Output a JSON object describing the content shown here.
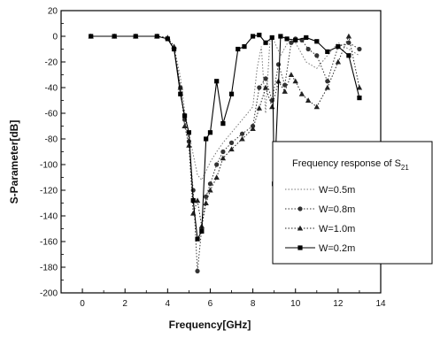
{
  "chart_data": {
    "type": "line",
    "xlabel": "Frequency[GHz]",
    "ylabel": "S-Parameter[dB]",
    "xlim": [
      -1,
      14
    ],
    "ylim": [
      -200,
      20
    ],
    "xticks": [
      0,
      2,
      4,
      6,
      8,
      10,
      12,
      14
    ],
    "yticks": [
      20,
      0,
      -20,
      -40,
      -60,
      -80,
      -100,
      -120,
      -140,
      -160,
      -180,
      -200
    ],
    "grid": false,
    "legend": {
      "title_main": "Frequency response of S",
      "title_sub": "21",
      "placement": "right",
      "entries": [
        "W=0.5m",
        "W=0.8m",
        "W=1.0m",
        "W=0.2m"
      ]
    },
    "series": [
      {
        "name": "W=0.5m",
        "style": "dotted",
        "marker": "none",
        "color": "#777777",
        "x": [
          0.4,
          1.5,
          2.5,
          3.5,
          4.0,
          4.3,
          4.6,
          4.8,
          5.0,
          5.2,
          5.4,
          5.6,
          5.8,
          6.0,
          6.3,
          6.6,
          7.0,
          7.5,
          8.0,
          8.2,
          8.4,
          8.6,
          8.8,
          9.0,
          9.3,
          9.6,
          10.0,
          10.5,
          11.0,
          11.5,
          12.0,
          12.5,
          13.0
        ],
        "y": [
          0,
          0,
          0,
          0,
          -1,
          -8,
          -32,
          -58,
          -76,
          -92,
          -108,
          -112,
          -105,
          -98,
          -90,
          -83,
          -75,
          -65,
          -55,
          -25,
          -8,
          -60,
          -3,
          -4,
          -15,
          -6,
          -5,
          -20,
          -25,
          -15,
          -5,
          -10,
          -15
        ]
      },
      {
        "name": "W=0.8m",
        "style": "dotted",
        "marker": "circle",
        "color": "#333333",
        "x": [
          0.4,
          1.5,
          2.5,
          3.5,
          4.0,
          4.3,
          4.6,
          4.8,
          5.0,
          5.2,
          5.4,
          5.6,
          5.8,
          6.0,
          6.3,
          6.6,
          7.0,
          7.5,
          8.0,
          8.3,
          8.6,
          8.9,
          9.2,
          9.5,
          9.8,
          10.0,
          10.3,
          10.6,
          11.0,
          11.5,
          12.0,
          12.5,
          13.0
        ],
        "y": [
          0,
          0,
          0,
          0,
          -2,
          -10,
          -40,
          -65,
          -82,
          -120,
          -183,
          -150,
          -125,
          -115,
          -100,
          -90,
          -83,
          -76,
          -70,
          -40,
          -33,
          -50,
          -22,
          -38,
          -5,
          -2,
          -3,
          -10,
          -15,
          -35,
          -8,
          -5,
          -10
        ]
      },
      {
        "name": "W=1.0m",
        "style": "dotted",
        "marker": "triangle",
        "color": "#222222",
        "x": [
          0.4,
          1.5,
          2.5,
          3.5,
          4.0,
          4.3,
          4.6,
          4.8,
          5.0,
          5.2,
          5.4,
          5.6,
          5.8,
          6.0,
          6.3,
          6.6,
          7.0,
          7.5,
          8.0,
          8.3,
          8.6,
          8.9,
          9.2,
          9.5,
          9.8,
          10.0,
          10.3,
          10.6,
          11.0,
          11.5,
          12.0,
          12.5,
          13.0
        ],
        "y": [
          0,
          0,
          0,
          0,
          -1,
          -8,
          -40,
          -70,
          -85,
          -138,
          -128,
          -148,
          -130,
          -120,
          -110,
          -95,
          -88,
          -80,
          -72,
          -56,
          -40,
          -55,
          -35,
          -43,
          -30,
          -35,
          -45,
          -50,
          -55,
          -40,
          -20,
          0,
          -40
        ]
      },
      {
        "name": "W=0.2m",
        "style": "solid",
        "marker": "square",
        "color": "#000000",
        "x": [
          0.4,
          1.5,
          2.5,
          3.5,
          4.0,
          4.3,
          4.6,
          4.8,
          5.0,
          5.2,
          5.4,
          5.6,
          5.8,
          6.0,
          6.3,
          6.6,
          7.0,
          7.3,
          7.6,
          8.0,
          8.3,
          8.6,
          8.9,
          9.0,
          9.3,
          9.6,
          10.0,
          10.5,
          11.0,
          11.5,
          12.0,
          12.5,
          13.0
        ],
        "y": [
          0,
          0,
          0,
          0,
          -2,
          -10,
          -45,
          -62,
          -75,
          -128,
          -158,
          -152,
          -80,
          -75,
          -35,
          -68,
          -45,
          -10,
          -8,
          0,
          1,
          -5,
          -1,
          -115,
          0,
          -2,
          -3,
          -1,
          -4,
          -12,
          -8,
          -15,
          -48
        ]
      }
    ]
  }
}
